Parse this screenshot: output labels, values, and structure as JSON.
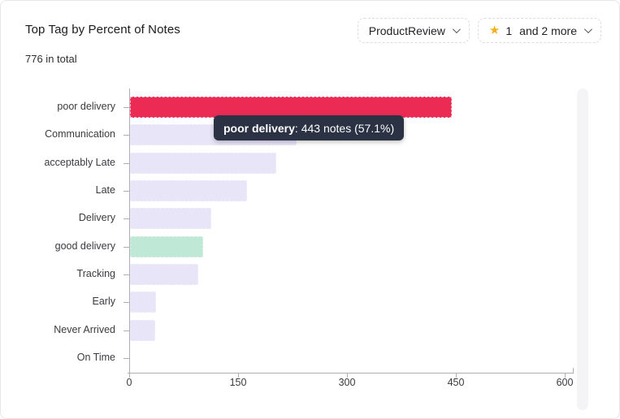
{
  "header": {
    "title": "Top Tag by Percent of Notes",
    "total_label": "776 in total",
    "filters": [
      {
        "label": "ProductReview"
      },
      {
        "icon": "star-icon",
        "label": "1",
        "suffix": "and 2 more"
      }
    ]
  },
  "tooltip": {
    "tag": "poor delivery",
    "detail": ": 443 notes (57.1%)"
  },
  "colors": {
    "highlight": "#ec2b55",
    "default": "#e8e5f9",
    "positive": "#bfe9d6",
    "tooltip_bg": "#2b3244",
    "star": "#f2b01e",
    "axis": "#aeaeb4"
  },
  "chart_data": {
    "type": "bar",
    "orientation": "horizontal",
    "title": "Top Tag by Percent of Notes",
    "total_notes": 776,
    "categories": [
      "poor delivery",
      "Communication",
      "acceptably Late",
      "Late",
      "Delivery",
      "good delivery",
      "Tracking",
      "Early",
      "Never Arrived",
      "On Time"
    ],
    "values": [
      443,
      230,
      202,
      161,
      112,
      101,
      94,
      36,
      35,
      0
    ],
    "color_roles": [
      "highlight",
      "default",
      "default",
      "default",
      "default",
      "positive",
      "default",
      "default",
      "default",
      "default"
    ],
    "hovered": {
      "category": "poor delivery",
      "notes": 443,
      "percent": "57.1%"
    },
    "x_ticks": [
      0,
      150,
      300,
      450,
      600
    ],
    "xlim": [
      0,
      600
    ],
    "xlabel": "",
    "ylabel": "",
    "grid": false,
    "legend": false
  }
}
